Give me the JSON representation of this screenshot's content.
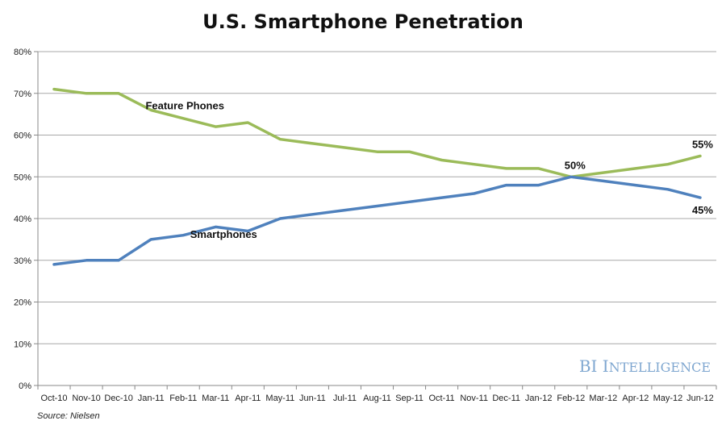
{
  "chart_data": {
    "type": "line",
    "title": "U.S. Smartphone Penetration",
    "xlabel": "",
    "ylabel": "",
    "ylim": [
      0,
      80
    ],
    "y_ticks": [
      "0%",
      "10%",
      "20%",
      "30%",
      "40%",
      "50%",
      "60%",
      "70%",
      "80%"
    ],
    "y_tick_values": [
      0,
      10,
      20,
      30,
      40,
      50,
      60,
      70,
      80
    ],
    "grid": true,
    "categories": [
      "Oct-10",
      "Nov-10",
      "Dec-10",
      "Jan-11",
      "Feb-11",
      "Mar-11",
      "Apr-11",
      "May-11",
      "Jun-11",
      "Jul-11",
      "Aug-11",
      "Sep-11",
      "Oct-11",
      "Nov-11",
      "Dec-11",
      "Jan-12",
      "Feb-12",
      "Mar-12",
      "Apr-12",
      "May-12",
      "Jun-12"
    ],
    "series": [
      {
        "name": "Feature Phones",
        "color": "#9bbb59",
        "values": [
          71,
          70,
          70,
          66,
          64,
          62,
          63,
          59,
          58,
          57,
          56,
          56,
          54,
          53,
          52,
          52,
          50,
          51,
          52,
          53,
          55
        ]
      },
      {
        "name": "Smartphones",
        "color": "#4f81bd",
        "values": [
          29,
          30,
          30,
          35,
          36,
          38,
          37,
          40,
          41,
          42,
          43,
          44,
          45,
          46,
          48,
          48,
          50,
          49,
          48,
          47,
          45
        ]
      }
    ],
    "annotations": [
      {
        "text": "50%",
        "series": 0,
        "index": 16
      },
      {
        "text": "55%",
        "series": 0,
        "index": 20
      },
      {
        "text": "45%",
        "series": 1,
        "index": 20
      }
    ],
    "source": "Source: Nielsen",
    "brand": {
      "first": "BI",
      "second_initial": "I",
      "second_rest": "NTELLIGENCE",
      "color": "#7fa7d0"
    }
  }
}
